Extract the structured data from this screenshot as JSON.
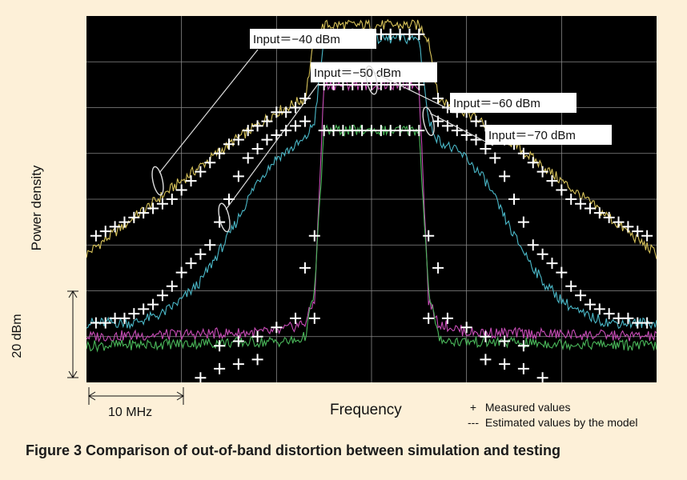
{
  "chart_data": {
    "type": "line",
    "caption": "Figure 3  Comparison of out-of-band distortion between simulation and testing",
    "xlabel": "Frequency",
    "ylabel": "Power density",
    "x_scale_label": "10 MHz",
    "y_scale_label": "20 dBm",
    "x_scale_value": 10,
    "y_scale_value": 20,
    "xlim": [
      -30,
      30
    ],
    "ylim": [
      -80,
      0
    ],
    "grid": true,
    "legend": [
      {
        "marker": "+",
        "label": "Measured values"
      },
      {
        "marker": "---",
        "label": "Estimated values by the model"
      }
    ],
    "annotations": [
      {
        "text": "Input＝−40 dBm",
        "series": 0
      },
      {
        "text": "Input＝−50 dBm",
        "series": 1
      },
      {
        "text": "Input＝−60 dBm",
        "series": 2
      },
      {
        "text": "Input＝−70 dBm",
        "series": 3
      }
    ],
    "series": [
      {
        "color": "#d9c45a",
        "estimated": {
          "x": [
            -30,
            -25,
            -20,
            -15,
            -10,
            -7,
            -6,
            -5,
            -4,
            4,
            5,
            6,
            7,
            10,
            15,
            20,
            25,
            30
          ],
          "y": [
            -52,
            -44,
            -36,
            -28,
            -21,
            -18,
            -5,
            -2,
            -2,
            -2,
            -2,
            -5,
            -18,
            -21,
            -28,
            -36,
            -44,
            -52
          ]
        },
        "measured": {
          "x": [
            -29,
            -28,
            -27,
            -26,
            -25,
            -24,
            -23,
            -22,
            -21,
            -20,
            -19,
            -18,
            -17,
            -16,
            -15,
            -14,
            -13,
            -12,
            -11,
            -10,
            -9,
            -8,
            -7,
            -5,
            -4,
            -3,
            -2,
            -1,
            0,
            1,
            2,
            3,
            4,
            5,
            7,
            8,
            9,
            10,
            11,
            12,
            13,
            14,
            15,
            16,
            17,
            18,
            19,
            20,
            21,
            22,
            23,
            24,
            25,
            26,
            27,
            28,
            29
          ],
          "y": [
            -48,
            -47,
            -46,
            -45,
            -44,
            -43,
            -42,
            -41,
            -40,
            -38,
            -36,
            -34,
            -32,
            -30,
            -28,
            -27,
            -25,
            -24,
            -23,
            -21,
            -21,
            -20,
            -18,
            -4,
            -4,
            -4,
            -4,
            -4,
            -4,
            -4,
            -4,
            -4,
            -4,
            -4,
            -18,
            -20,
            -21,
            -21,
            -23,
            -24,
            -25,
            -27,
            -28,
            -30,
            -32,
            -34,
            -36,
            -38,
            -40,
            -41,
            -42,
            -43,
            -44,
            -45,
            -46,
            -47,
            -48
          ]
        }
      },
      {
        "color": "#4ab8c8",
        "estimated": {
          "x": [
            -30,
            -25,
            -22,
            -20,
            -18,
            -15,
            -12,
            -10,
            -7,
            -6,
            -5,
            -4,
            4,
            5,
            6,
            7,
            10,
            12,
            15,
            18,
            20,
            22,
            25,
            30
          ],
          "y": [
            -67,
            -67,
            -65,
            -62,
            -58,
            -48,
            -36,
            -31,
            -27,
            -23,
            -5,
            -5,
            -5,
            -5,
            -23,
            -27,
            -31,
            -36,
            -48,
            -58,
            -62,
            -65,
            -67,
            -67
          ]
        },
        "measured": {
          "x": [
            -29,
            -28,
            -27,
            -26,
            -25,
            -24,
            -23,
            -22,
            -21,
            -20,
            -19,
            -18,
            -17,
            -16,
            -15,
            -14,
            -13,
            -12,
            -11,
            -10,
            -9,
            -8,
            -7,
            -5,
            -4,
            -3,
            -2,
            -1,
            0,
            1,
            2,
            3,
            4,
            5,
            7,
            8,
            9,
            10,
            11,
            12,
            13,
            14,
            15,
            16,
            17,
            18,
            19,
            20,
            21,
            22,
            23,
            24,
            25,
            26,
            27,
            28,
            29
          ],
          "y": [
            -67,
            -67,
            -66,
            -66,
            -65,
            -64,
            -63,
            -61,
            -59,
            -56,
            -54,
            -52,
            -50,
            -45,
            -40,
            -35,
            -31,
            -29,
            -27,
            -26,
            -25,
            -24,
            -23,
            -4,
            -4,
            -4,
            -4,
            -4,
            -4,
            -4,
            -4,
            -4,
            -4,
            -4,
            -23,
            -24,
            -25,
            -26,
            -27,
            -29,
            -31,
            -35,
            -40,
            -45,
            -50,
            -52,
            -54,
            -56,
            -59,
            -61,
            -63,
            -64,
            -65,
            -66,
            -66,
            -67,
            -67
          ]
        }
      },
      {
        "color": "#c94db8",
        "estimated": {
          "x": [
            -30,
            -10,
            -7,
            -6,
            -5,
            -4,
            4,
            5,
            6,
            7,
            10,
            30
          ],
          "y": [
            -70,
            -69,
            -67,
            -62,
            -15,
            -15,
            -15,
            -15,
            -62,
            -67,
            -69,
            -70
          ]
        },
        "measured": {
          "x": [
            -16,
            -14,
            -12,
            -10,
            -8,
            -6,
            -5,
            -4,
            -3,
            -2,
            -1,
            0,
            1,
            2,
            3,
            4,
            5,
            6,
            8,
            10,
            12,
            14,
            16
          ],
          "y": [
            -72,
            -71,
            -70,
            -68,
            -66,
            -66,
            -15,
            -15,
            -15,
            -15,
            -15,
            -15,
            -15,
            -15,
            -15,
            -15,
            -15,
            -66,
            -66,
            -68,
            -70,
            -71,
            -72
          ]
        }
      },
      {
        "color": "#4ab85a",
        "estimated": {
          "x": [
            -30,
            -8,
            -7,
            -6,
            -5,
            -4,
            4,
            5,
            6,
            7,
            8,
            30
          ],
          "y": [
            -72,
            -71,
            -70,
            -60,
            -25,
            -25,
            -25,
            -25,
            -60,
            -70,
            -71,
            -72
          ]
        },
        "measured": {
          "x": [
            -18,
            -16,
            -14,
            -12,
            -7,
            -6,
            -5,
            -4,
            -3,
            -2,
            -1,
            0,
            1,
            2,
            3,
            4,
            5,
            6,
            7,
            12,
            14,
            16,
            18
          ],
          "y": [
            -79,
            -77,
            -76,
            -75,
            -55,
            -48,
            -25,
            -25,
            -25,
            -25,
            -25,
            -25,
            -25,
            -25,
            -25,
            -25,
            -25,
            -48,
            -55,
            -75,
            -76,
            -77,
            -79
          ]
        }
      }
    ]
  }
}
